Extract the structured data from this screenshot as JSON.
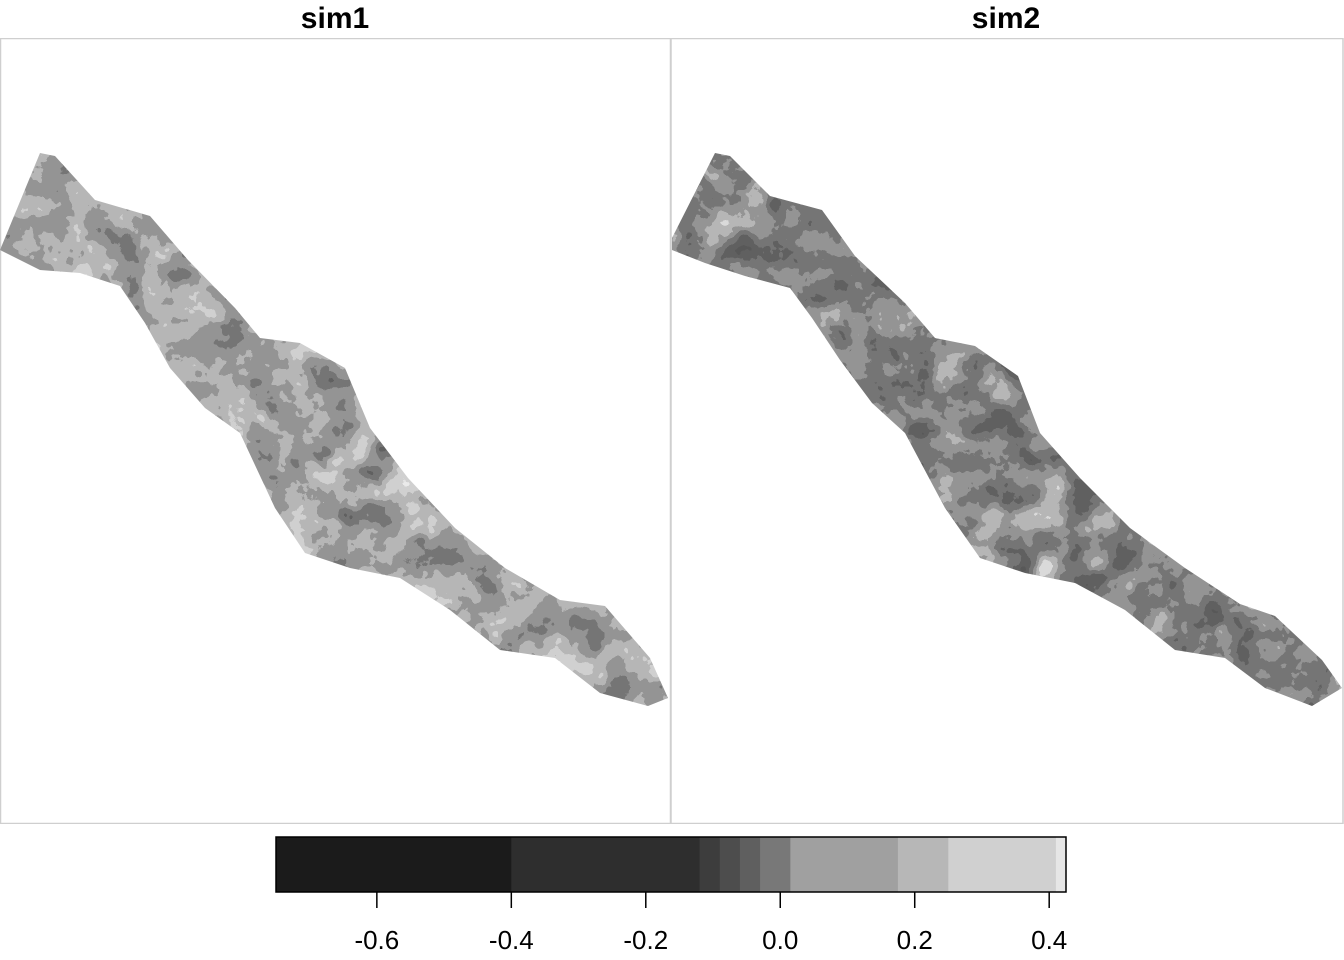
{
  "panels": [
    {
      "title": "sim1"
    },
    {
      "title": "sim2"
    }
  ],
  "legend": {
    "bins": [
      {
        "from": -0.75,
        "to": -0.4,
        "color": "#1b1b1b"
      },
      {
        "from": -0.4,
        "to": -0.12,
        "color": "#2e2e2e"
      },
      {
        "from": -0.12,
        "to": -0.09,
        "color": "#3d3d3d"
      },
      {
        "from": -0.09,
        "to": -0.06,
        "color": "#4d4d4d"
      },
      {
        "from": -0.06,
        "to": -0.03,
        "color": "#5f5f5f"
      },
      {
        "from": -0.03,
        "to": 0.015,
        "color": "#787878"
      },
      {
        "from": 0.015,
        "to": 0.175,
        "color": "#a0a0a0"
      },
      {
        "from": 0.175,
        "to": 0.25,
        "color": "#b7b7b7"
      },
      {
        "from": 0.25,
        "to": 0.41,
        "color": "#d0d0d0"
      },
      {
        "from": 0.41,
        "to": 0.425,
        "color": "#e6e6e6"
      }
    ],
    "range": [
      -0.75,
      0.425
    ],
    "ticks": [
      {
        "value": -0.6,
        "label": "-0.6"
      },
      {
        "value": -0.4,
        "label": "-0.4"
      },
      {
        "value": -0.2,
        "label": "-0.2"
      },
      {
        "value": 0.0,
        "label": "0.0"
      },
      {
        "value": 0.2,
        "label": "0.2"
      },
      {
        "value": 0.4,
        "label": "0.4"
      }
    ]
  }
}
